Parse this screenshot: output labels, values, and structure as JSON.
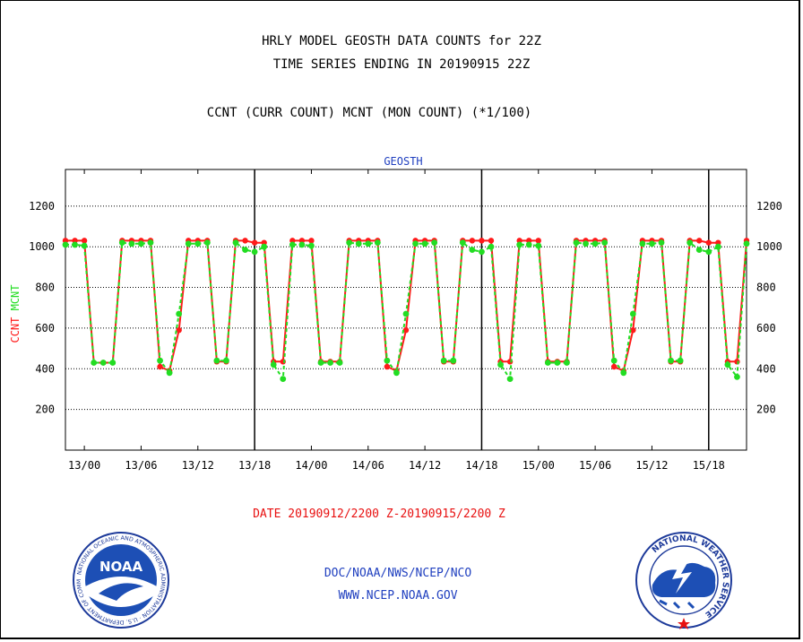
{
  "header": {
    "title_line1": "HRLY MODEL GEOSTH DATA COUNTS for 22Z",
    "title_line2": "TIME SERIES ENDING IN 20190915 22Z",
    "subtitle": "CCNT (CURR COUNT) MCNT (MON COUNT) (*1/100)"
  },
  "chart_data": {
    "type": "line",
    "title": "GEOSTH",
    "ylabel_ccnt": "CCNT",
    "ylabel_mcnt": "MCNT",
    "ylim": [
      0,
      1380
    ],
    "y_ticks": [
      200,
      400,
      600,
      800,
      1000,
      1200
    ],
    "grid": true,
    "x_tick_labels": [
      "13/00",
      "13/06",
      "13/12",
      "13/18",
      "14/00",
      "14/06",
      "14/12",
      "14/18",
      "15/00",
      "15/06",
      "15/12",
      "15/18"
    ],
    "day_boundaries": [
      "13/18",
      "14/18",
      "15/18"
    ],
    "x_start": "12/22",
    "x_end": "15/22",
    "hours_per_tick": 6,
    "series": [
      {
        "name": "CCNT",
        "color": "#ff1a1a",
        "values": [
          1030,
          1030,
          1030,
          430,
          430,
          430,
          1030,
          1030,
          1030,
          1030,
          410,
          390,
          590,
          1030,
          1030,
          1030,
          435,
          435,
          1030,
          1030,
          1020,
          1020,
          435,
          435,
          1030,
          1030,
          1030,
          435,
          435,
          435,
          1030,
          1030,
          1030,
          1030,
          410,
          390,
          590,
          1030,
          1030,
          1030,
          435,
          435,
          1030,
          1030,
          1030,
          1030,
          435,
          435,
          1030,
          1030,
          1030,
          435,
          435,
          435,
          1030,
          1030,
          1030,
          1030,
          410,
          390,
          590,
          1030,
          1030,
          1030,
          435,
          435,
          1030,
          1030,
          1020,
          1020,
          435,
          435,
          1030
        ]
      },
      {
        "name": "MCNT",
        "color": "#22dd22",
        "values": [
          1010,
          1010,
          1005,
          430,
          430,
          430,
          1020,
          1015,
          1015,
          1020,
          440,
          380,
          670,
          1015,
          1015,
          1020,
          440,
          440,
          1020,
          985,
          975,
          1000,
          420,
          350,
          1010,
          1010,
          1005,
          430,
          430,
          430,
          1020,
          1015,
          1015,
          1020,
          440,
          380,
          670,
          1015,
          1015,
          1020,
          440,
          440,
          1020,
          985,
          975,
          1000,
          420,
          350,
          1010,
          1010,
          1005,
          430,
          430,
          430,
          1020,
          1015,
          1015,
          1020,
          440,
          380,
          670,
          1015,
          1015,
          1020,
          440,
          440,
          1020,
          985,
          975,
          1000,
          420,
          360,
          1015
        ]
      }
    ]
  },
  "footer": {
    "date_range": "DATE 20190912/2200 Z-20190915/2200 Z",
    "org_line": "DOC/NOAA/NWS/NCEP/NCO",
    "url_line": "WWW.NCEP.NOAA.GOV",
    "noaa_logo_text": "NOAA",
    "noaa_ring_text": "NATIONAL OCEANIC AND ATMOSPHERIC ADMINISTRATION · U.S. DEPARTMENT OF COMMERCE",
    "nws_ring_text": "NATIONAL WEATHER SERVICE"
  },
  "colors": {
    "ccnt": "#ff1a1a",
    "mcnt": "#22dd22",
    "blue_text": "#1f3fbf",
    "red_text": "#e81010"
  }
}
